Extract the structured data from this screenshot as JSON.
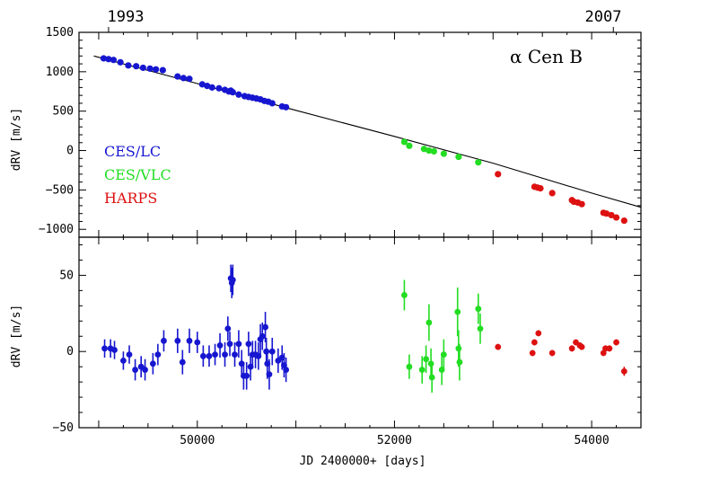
{
  "chart_data": [
    {
      "type": "scatter",
      "panel": "top",
      "object_label": "α Cen B",
      "ylabel": "dRV [m/s]",
      "xlabel": "",
      "xlim": [
        48800,
        54500
      ],
      "ylim": [
        -1100,
        1500
      ],
      "yticks": [
        -1000,
        -500,
        0,
        500,
        1000,
        1500
      ],
      "top_axis_labels": [
        {
          "x": 49100,
          "label": "1993"
        },
        {
          "x": 54220,
          "label": "2007"
        }
      ],
      "fit_line": {
        "x": [
          48950,
          50000,
          51000,
          52000,
          53000,
          54000,
          54500
        ],
        "y": [
          1200,
          850,
          510,
          180,
          -160,
          -540,
          -720
        ]
      },
      "legend": [
        "CES/LC",
        "CES/VLC",
        "HARPS"
      ],
      "legend_position": "left",
      "series": [
        {
          "name": "CES/LC",
          "color": "#1616d0",
          "x": [
            49050,
            49100,
            49150,
            49220,
            49300,
            49380,
            49450,
            49520,
            49580,
            49650,
            49800,
            49860,
            49920,
            50050,
            50100,
            50150,
            50220,
            50280,
            50320,
            50340,
            50360,
            50420,
            50480,
            50520,
            50560,
            50600,
            50640,
            50680,
            50720,
            50760,
            50860,
            50900
          ],
          "y": [
            1170,
            1160,
            1150,
            1120,
            1080,
            1070,
            1050,
            1040,
            1030,
            1020,
            940,
            920,
            910,
            840,
            820,
            800,
            790,
            770,
            750,
            760,
            740,
            710,
            690,
            680,
            670,
            660,
            650,
            630,
            620,
            600,
            560,
            550
          ]
        },
        {
          "name": "CES/VLC",
          "color": "#22dd22",
          "x": [
            52100,
            52150,
            52300,
            52350,
            52400,
            52500,
            52650,
            52850
          ],
          "y": [
            110,
            60,
            20,
            0,
            -10,
            -40,
            -80,
            -150
          ]
        },
        {
          "name": "HARPS",
          "color": "#dd1111",
          "x": [
            53050,
            53420,
            53450,
            53480,
            53600,
            53800,
            53820,
            53860,
            53900,
            54120,
            54150,
            54200,
            54250,
            54330
          ],
          "y": [
            -300,
            -460,
            -470,
            -480,
            -540,
            -630,
            -650,
            -660,
            -680,
            -790,
            -800,
            -820,
            -850,
            -890
          ]
        }
      ]
    },
    {
      "type": "scatter",
      "panel": "bottom",
      "xlabel": "JD 2400000+ [days]",
      "ylabel": "dRV [m/s]",
      "xlim": [
        48800,
        54500
      ],
      "ylim": [
        -50,
        75
      ],
      "xticks": [
        50000,
        52000,
        54000
      ],
      "yticks": [
        -50,
        0,
        50
      ],
      "series": [
        {
          "name": "CES/LC",
          "color": "#1616d0",
          "x": [
            49060,
            49120,
            49160,
            49250,
            49310,
            49370,
            49430,
            49470,
            49550,
            49600,
            49660,
            49800,
            49850,
            49920,
            50000,
            50060,
            50120,
            50180,
            50230,
            50280,
            50310,
            50330,
            50340,
            50350,
            50360,
            50380,
            50420,
            50450,
            50470,
            50500,
            50520,
            50540,
            50560,
            50590,
            50620,
            50640,
            50660,
            50690,
            50700,
            50710,
            50730,
            50760,
            50820,
            50860,
            50880,
            50900
          ],
          "y": [
            2,
            2,
            1,
            -6,
            -2,
            -12,
            -10,
            -12,
            -8,
            -2,
            7,
            7,
            -7,
            7,
            6,
            -3,
            -3,
            -2,
            4,
            -2,
            15,
            5,
            48,
            45,
            47,
            -2,
            5,
            -8,
            -16,
            -16,
            5,
            -10,
            -2,
            -2,
            -3,
            8,
            10,
            16,
            0,
            -8,
            -15,
            0,
            -6,
            -4,
            -9,
            -12
          ],
          "err": [
            6,
            6,
            6,
            6,
            6,
            7,
            7,
            7,
            7,
            7,
            7,
            8,
            8,
            8,
            7,
            7,
            7,
            7,
            8,
            8,
            8,
            8,
            9,
            10,
            10,
            8,
            9,
            9,
            9,
            9,
            8,
            9,
            9,
            9,
            9,
            10,
            9,
            10,
            9,
            10,
            10,
            9,
            8,
            8,
            8,
            8
          ]
        },
        {
          "name": "CES/VLC",
          "color": "#22dd22",
          "x": [
            52100,
            52150,
            52280,
            52320,
            52350,
            52370,
            52380,
            52480,
            52500,
            52640,
            52650,
            52660,
            52850,
            52870
          ],
          "y": [
            37,
            -10,
            -12,
            -5,
            19,
            -8,
            -17,
            -12,
            -2,
            26,
            2,
            -7,
            28,
            15
          ],
          "err": [
            10,
            8,
            9,
            9,
            12,
            10,
            10,
            10,
            10,
            16,
            12,
            12,
            10,
            10
          ]
        },
        {
          "name": "HARPS",
          "color": "#dd1111",
          "x": [
            53050,
            53400,
            53420,
            53460,
            53600,
            53800,
            53840,
            53880,
            53900,
            54120,
            54140,
            54180,
            54250,
            54330
          ],
          "y": [
            3,
            -1,
            6,
            12,
            -1,
            2,
            6,
            4,
            3,
            -1,
            2,
            2,
            6,
            -13
          ],
          "err": [
            2,
            2,
            2,
            2,
            2,
            2,
            2,
            2,
            2,
            2,
            2,
            2,
            2,
            3
          ]
        }
      ]
    }
  ]
}
